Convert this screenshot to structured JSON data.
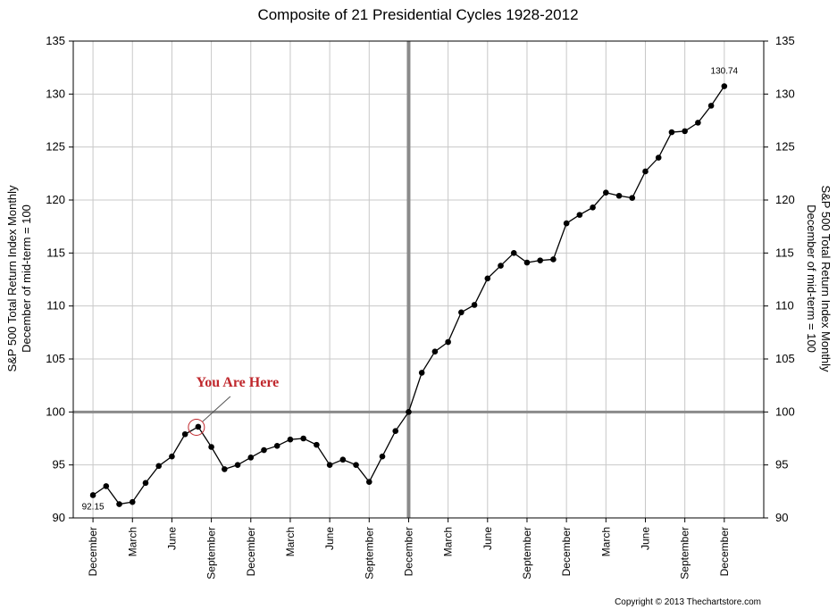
{
  "chart_data": {
    "type": "line",
    "title": "Composite of 21 Presidential Cycles 1928-2012",
    "ylabel_lines": [
      "S&P 500 Total Return Index Monthly",
      "December of mid-term = 100"
    ],
    "y2label_lines": [
      "S&P 500 Total Return Index Monthly",
      "December of mid-term = 100"
    ],
    "ylim": [
      90,
      135
    ],
    "yticks": [
      "90",
      "95",
      "100",
      "105",
      "110",
      "115",
      "120",
      "125",
      "130",
      "135"
    ],
    "x_tick_labels": [
      {
        "label": "December",
        "index": 0
      },
      {
        "label": "March",
        "index": 3
      },
      {
        "label": "June",
        "index": 6
      },
      {
        "label": "September",
        "index": 9
      },
      {
        "label": "December",
        "index": 12
      },
      {
        "label": "March",
        "index": 15
      },
      {
        "label": "June",
        "index": 18
      },
      {
        "label": "September",
        "index": 21
      },
      {
        "label": "December",
        "index": 24
      },
      {
        "label": "March",
        "index": 27
      },
      {
        "label": "June",
        "index": 30
      },
      {
        "label": "September",
        "index": 33
      },
      {
        "label": "December",
        "index": 36
      },
      {
        "label": "March",
        "index": 39
      },
      {
        "label": "June",
        "index": 42
      },
      {
        "label": "September",
        "index": 45
      },
      {
        "label": "December",
        "index": 48
      }
    ],
    "x_range": [
      -1.5,
      51
    ],
    "reference_lines": {
      "x_index": 24,
      "y_value": 100
    },
    "grid": true,
    "series": [
      {
        "values": [
          92.15,
          93.0,
          91.3,
          91.5,
          93.3,
          94.9,
          95.8,
          97.9,
          98.6,
          96.7,
          94.6,
          95.0,
          95.7,
          96.4,
          96.8,
          97.4,
          97.5,
          96.9,
          95.0,
          95.5,
          95.0,
          93.4,
          95.8,
          98.2,
          100.0,
          103.7,
          105.7,
          106.6,
          109.4,
          110.1,
          112.6,
          113.8,
          115.0,
          114.1,
          114.3,
          114.4,
          117.8,
          118.6,
          119.3,
          120.7,
          120.4,
          120.2,
          122.7,
          124.0,
          126.4,
          126.5,
          127.3,
          128.9,
          130.74
        ]
      }
    ],
    "data_labels": [
      {
        "index": 0,
        "text": "92.15",
        "position": "below"
      },
      {
        "index": 48,
        "text": "130.74",
        "position": "above"
      }
    ],
    "annotation": {
      "text": "You Are Here",
      "index": 8
    }
  },
  "footer": {
    "copyright": "Copyright © 2013 Thechartstore.com"
  }
}
